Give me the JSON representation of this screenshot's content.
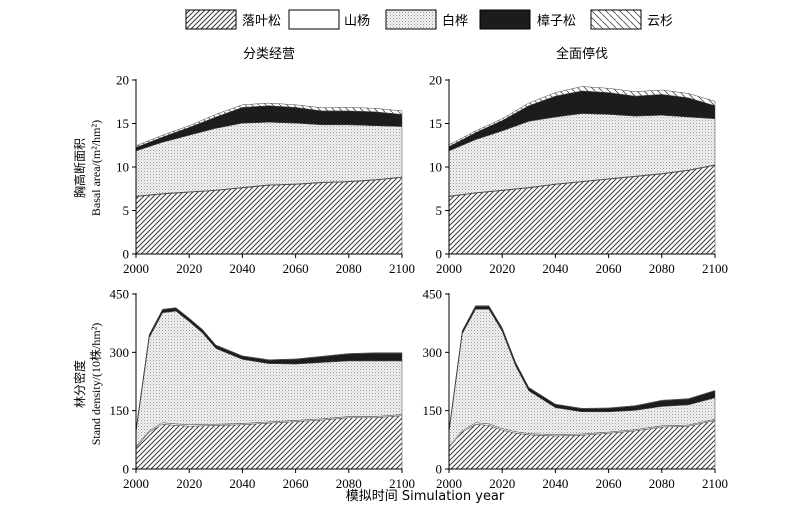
{
  "chart_data": {
    "type": "area",
    "legend": {
      "placement": "top",
      "entries": [
        {
          "name": "落叶松",
          "pattern": "hatch-dense"
        },
        {
          "name": "山杨",
          "pattern": "white"
        },
        {
          "name": "白桦",
          "pattern": "dotted"
        },
        {
          "name": "樟子松",
          "pattern": "black"
        },
        {
          "name": "云杉",
          "pattern": "hatch-sparse"
        }
      ]
    },
    "xlabel": "模拟时间 Simulation year",
    "panels": [
      {
        "id": "basal-mgmt",
        "title": "分类经营",
        "ylabel": [
          "胸高断面积",
          "Basal area/(m²/hm²)"
        ],
        "xlim": [
          2000,
          2100
        ],
        "ylim": [
          0,
          20
        ],
        "xticks": [
          2000,
          2020,
          2040,
          2060,
          2080,
          2100
        ],
        "yticks": [
          0,
          5,
          10,
          15,
          20
        ],
        "x": [
          2000,
          2010,
          2020,
          2030,
          2040,
          2050,
          2060,
          2070,
          2080,
          2090,
          2100
        ],
        "series": [
          {
            "name": "落叶松",
            "values": [
              6.6,
              6.9,
              7.1,
              7.3,
              7.6,
              7.9,
              8.0,
              8.2,
              8.3,
              8.5,
              8.8
            ]
          },
          {
            "name": "山杨",
            "values": [
              0.05,
              0.05,
              0.05,
              0.05,
              0.05,
              0.05,
              0.05,
              0.05,
              0.05,
              0.05,
              0.05
            ]
          },
          {
            "name": "白桦",
            "values": [
              5.2,
              5.9,
              6.5,
              7.1,
              7.4,
              7.2,
              7.0,
              6.6,
              6.5,
              6.2,
              5.8
            ]
          },
          {
            "name": "樟子松",
            "values": [
              0.4,
              0.6,
              0.9,
              1.3,
              1.8,
              1.9,
              1.8,
              1.6,
              1.6,
              1.6,
              1.4
            ]
          },
          {
            "name": "云杉",
            "values": [
              0.2,
              0.2,
              0.2,
              0.3,
              0.3,
              0.3,
              0.3,
              0.35,
              0.4,
              0.4,
              0.4
            ]
          }
        ]
      },
      {
        "id": "basal-stop",
        "title": "全面停伐",
        "ylabel": [],
        "xlim": [
          2000,
          2100
        ],
        "ylim": [
          0,
          20
        ],
        "xticks": [
          2000,
          2020,
          2040,
          2060,
          2080,
          2100
        ],
        "yticks": [
          0,
          5,
          10,
          15,
          20
        ],
        "x": [
          2000,
          2010,
          2020,
          2030,
          2040,
          2050,
          2060,
          2070,
          2080,
          2090,
          2100
        ],
        "series": [
          {
            "name": "落叶松",
            "values": [
              6.6,
              7.0,
              7.3,
              7.6,
              8.0,
              8.3,
              8.6,
              8.9,
              9.2,
              9.6,
              10.2
            ]
          },
          {
            "name": "山杨",
            "values": [
              0.05,
              0.05,
              0.05,
              0.05,
              0.05,
              0.05,
              0.05,
              0.05,
              0.05,
              0.05,
              0.05
            ]
          },
          {
            "name": "白桦",
            "values": [
              5.2,
              6.1,
              6.8,
              7.6,
              7.7,
              7.8,
              7.4,
              6.9,
              6.7,
              6.1,
              5.3
            ]
          },
          {
            "name": "樟子松",
            "values": [
              0.5,
              0.8,
              1.2,
              1.8,
              2.4,
              2.6,
              2.5,
              2.3,
              2.4,
              2.2,
              1.5
            ]
          },
          {
            "name": "云杉",
            "values": [
              0.2,
              0.2,
              0.2,
              0.3,
              0.4,
              0.5,
              0.5,
              0.5,
              0.5,
              0.5,
              0.5
            ]
          }
        ]
      },
      {
        "id": "density-mgmt",
        "title": "",
        "ylabel": [
          "林分密度",
          "Stand density/(10株/hm²)"
        ],
        "xlim": [
          2000,
          2100
        ],
        "ylim": [
          0,
          450
        ],
        "xticks": [
          2000,
          2020,
          2040,
          2060,
          2080,
          2100
        ],
        "yticks": [
          0,
          150,
          300,
          450
        ],
        "x": [
          2000,
          2005,
          2010,
          2015,
          2020,
          2025,
          2030,
          2040,
          2050,
          2060,
          2070,
          2080,
          2090,
          2100
        ],
        "series": [
          {
            "name": "落叶松",
            "values": [
              55,
              95,
              115,
              112,
              110,
              111,
              112,
              114,
              118,
              122,
              126,
              132,
              132,
              137
            ]
          },
          {
            "name": "山杨",
            "values": [
              3,
              3,
              4,
              4,
              4,
              4,
              3,
              3,
              3,
              3,
              3,
              3,
              3,
              3
            ]
          },
          {
            "name": "白桦",
            "values": [
              37,
              240,
              283,
              290,
              265,
              235,
              195,
              165,
              150,
              145,
              145,
              143,
              143,
              138
            ]
          },
          {
            "name": "樟子松",
            "values": [
              5,
              7,
              8,
              8,
              8,
              8,
              8,
              8,
              9,
              12,
              15,
              18,
              20,
              20
            ]
          },
          {
            "name": "云杉",
            "values": [
              1,
              1,
              1,
              1,
              1,
              1,
              1,
              1,
              1,
              1,
              1,
              1,
              1,
              1
            ]
          }
        ]
      },
      {
        "id": "density-stop",
        "title": "",
        "ylabel": [],
        "xlim": [
          2000,
          2100
        ],
        "ylim": [
          0,
          450
        ],
        "xticks": [
          2000,
          2020,
          2040,
          2060,
          2080,
          2100
        ],
        "yticks": [
          0,
          150,
          300,
          450
        ],
        "x": [
          2000,
          2005,
          2010,
          2015,
          2020,
          2025,
          2030,
          2040,
          2050,
          2060,
          2070,
          2080,
          2090,
          2100
        ],
        "series": [
          {
            "name": "落叶松",
            "values": [
              55,
              95,
              115,
              112,
              100,
              92,
              88,
              85,
              87,
              92,
              98,
              108,
              110,
              125
            ]
          },
          {
            "name": "山杨",
            "values": [
              3,
              3,
              4,
              4,
              4,
              4,
              3,
              3,
              3,
              3,
              3,
              3,
              3,
              3
            ]
          },
          {
            "name": "白桦",
            "values": [
              37,
              250,
              292,
              295,
              250,
              170,
              110,
              70,
              57,
              52,
              50,
              50,
              52,
              55
            ]
          },
          {
            "name": "樟子松",
            "values": [
              5,
              7,
              8,
              8,
              8,
              8,
              8,
              8,
              8,
              9,
              11,
              15,
              15,
              18
            ]
          },
          {
            "name": "云杉",
            "values": [
              1,
              1,
              1,
              1,
              1,
              1,
              1,
              1,
              1,
              1,
              1,
              1,
              1,
              1
            ]
          }
        ]
      }
    ]
  }
}
